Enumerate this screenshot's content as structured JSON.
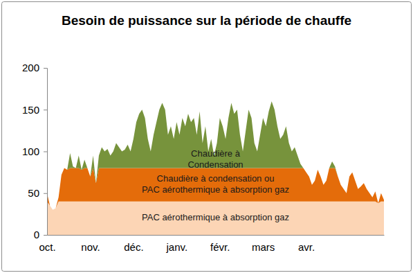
{
  "chart_data": {
    "type": "area",
    "title": "Besoin de puissance sur la période de chauffe",
    "stacked": true,
    "grid": false,
    "categories": [
      "oct.",
      null,
      null,
      null,
      null,
      null,
      null,
      null,
      null,
      null,
      null,
      null,
      null,
      null,
      null,
      "nov.",
      null,
      null,
      null,
      null,
      null,
      null,
      null,
      null,
      null,
      null,
      null,
      null,
      null,
      null,
      "déc.",
      null,
      null,
      null,
      null,
      null,
      null,
      null,
      null,
      null,
      null,
      null,
      null,
      null,
      null,
      "janv.",
      null,
      null,
      null,
      null,
      null,
      null,
      null,
      null,
      null,
      null,
      null,
      null,
      null,
      null,
      "févr.",
      null,
      null,
      null,
      null,
      null,
      null,
      null,
      null,
      null,
      null,
      null,
      null,
      null,
      null,
      "mars",
      null,
      null,
      null,
      null,
      null,
      null,
      null,
      null,
      null,
      null,
      null,
      null,
      null,
      null,
      "avr.",
      null,
      null,
      null,
      null,
      null,
      null,
      null,
      null,
      null,
      null,
      null,
      null,
      null,
      null,
      null,
      null,
      null,
      null,
      null,
      null,
      null,
      null,
      null,
      null,
      null,
      null,
      null
    ],
    "ylim": [
      0,
      200
    ],
    "yticks": [
      0,
      50,
      100,
      150,
      200
    ],
    "series": [
      {
        "name": "PAC aérothermique à absorption gaz",
        "color": "#fcd5b5",
        "values": [
          40,
          35,
          30,
          32,
          40,
          40,
          40,
          40,
          40,
          40,
          40,
          40,
          40,
          40,
          40,
          40,
          40,
          40,
          40,
          40,
          40,
          40,
          40,
          40,
          40,
          40,
          40,
          40,
          40,
          40,
          40,
          40,
          40,
          40,
          40,
          40,
          40,
          40,
          40,
          40,
          40,
          40,
          40,
          40,
          40,
          40,
          40,
          40,
          40,
          40,
          40,
          40,
          40,
          40,
          40,
          40,
          40,
          40,
          40,
          40,
          40,
          40,
          40,
          40,
          40,
          40,
          40,
          40,
          40,
          40,
          40,
          40,
          40,
          40,
          40,
          40,
          40,
          40,
          40,
          40,
          40,
          40,
          40,
          40,
          40,
          40,
          40,
          40,
          40,
          40,
          40,
          40,
          40,
          40,
          40,
          40,
          40,
          40,
          40,
          40,
          40,
          40,
          40,
          40,
          40,
          40,
          40,
          40,
          40,
          40,
          40,
          40,
          40,
          40,
          40,
          38,
          40,
          40
        ]
      },
      {
        "name": "Chaudière à condensation ou PAC aérothermique à absorption gaz",
        "color": "#e46c0a",
        "values": [
          10,
          0,
          0,
          0,
          5,
          32,
          40,
          38,
          40,
          40,
          40,
          40,
          38,
          40,
          40,
          30,
          40,
          22,
          40,
          40,
          40,
          40,
          40,
          40,
          40,
          40,
          40,
          40,
          40,
          40,
          40,
          40,
          40,
          40,
          40,
          40,
          40,
          40,
          40,
          40,
          40,
          40,
          40,
          40,
          40,
          40,
          40,
          40,
          40,
          40,
          40,
          40,
          40,
          40,
          40,
          40,
          40,
          40,
          40,
          40,
          40,
          40,
          40,
          40,
          40,
          40,
          40,
          40,
          40,
          40,
          40,
          40,
          40,
          40,
          40,
          40,
          40,
          40,
          40,
          40,
          40,
          40,
          40,
          40,
          40,
          40,
          40,
          40,
          40,
          40,
          35,
          30,
          20,
          25,
          38,
          30,
          20,
          25,
          40,
          40,
          40,
          30,
          20,
          15,
          10,
          30,
          35,
          25,
          15,
          18,
          22,
          15,
          10,
          5,
          12,
          0,
          10,
          2
        ]
      },
      {
        "name": "Chaudière à Condensation",
        "color": "#77933c",
        "values": [
          0,
          0,
          0,
          0,
          0,
          0,
          0,
          0,
          18,
          2,
          0,
          15,
          0,
          10,
          0,
          0,
          15,
          0,
          15,
          25,
          20,
          23,
          15,
          20,
          30,
          25,
          20,
          22,
          28,
          20,
          35,
          55,
          65,
          70,
          60,
          35,
          20,
          40,
          55,
          70,
          78,
          70,
          40,
          50,
          35,
          55,
          40,
          60,
          50,
          65,
          55,
          60,
          40,
          68,
          30,
          50,
          20,
          35,
          15,
          30,
          60,
          50,
          35,
          60,
          78,
          65,
          70,
          40,
          20,
          45,
          70,
          60,
          30,
          20,
          40,
          60,
          50,
          68,
          80,
          70,
          50,
          35,
          40,
          50,
          30,
          20,
          25,
          15,
          5,
          0,
          0,
          0,
          0,
          0,
          0,
          0,
          0,
          0,
          0,
          8,
          2,
          0,
          0,
          0,
          0,
          0,
          0,
          0,
          0,
          0,
          0,
          0,
          0,
          0,
          0,
          0,
          0,
          0
        ]
      }
    ]
  }
}
